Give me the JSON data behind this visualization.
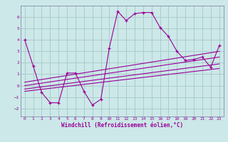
{
  "xlabel": "Windchill (Refroidissement éolien,°C)",
  "bg_color": "#cce8e8",
  "grid_color": "#aacccc",
  "line_color": "#990099",
  "spine_color": "#7777aa",
  "xlim": [
    -0.5,
    23.5
  ],
  "ylim": [
    -2.7,
    7.0
  ],
  "xticks": [
    0,
    1,
    2,
    3,
    4,
    5,
    6,
    7,
    8,
    9,
    10,
    11,
    12,
    13,
    14,
    15,
    16,
    17,
    18,
    19,
    20,
    21,
    22,
    23
  ],
  "yticks": [
    -2,
    -1,
    0,
    1,
    2,
    3,
    4,
    5,
    6
  ],
  "main_x": [
    0,
    1,
    2,
    3,
    4,
    5,
    6,
    7,
    8,
    9,
    10,
    11,
    12,
    13,
    14,
    15,
    16,
    17,
    18,
    19,
    20,
    21,
    22,
    23
  ],
  "main_y": [
    4.0,
    1.7,
    -0.6,
    -1.5,
    -1.5,
    1.1,
    1.1,
    -0.5,
    -1.7,
    -1.2,
    3.3,
    6.5,
    5.7,
    6.3,
    6.4,
    6.4,
    5.1,
    4.3,
    3.0,
    2.2,
    2.3,
    2.5,
    1.6,
    3.5
  ],
  "reg_lines": [
    {
      "x": [
        0,
        23
      ],
      "y": [
        -0.5,
        1.5
      ]
    },
    {
      "x": [
        0,
        23
      ],
      "y": [
        -0.3,
        1.9
      ]
    },
    {
      "x": [
        0,
        23
      ],
      "y": [
        0.0,
        2.5
      ]
    },
    {
      "x": [
        0,
        23
      ],
      "y": [
        0.3,
        3.0
      ]
    }
  ]
}
